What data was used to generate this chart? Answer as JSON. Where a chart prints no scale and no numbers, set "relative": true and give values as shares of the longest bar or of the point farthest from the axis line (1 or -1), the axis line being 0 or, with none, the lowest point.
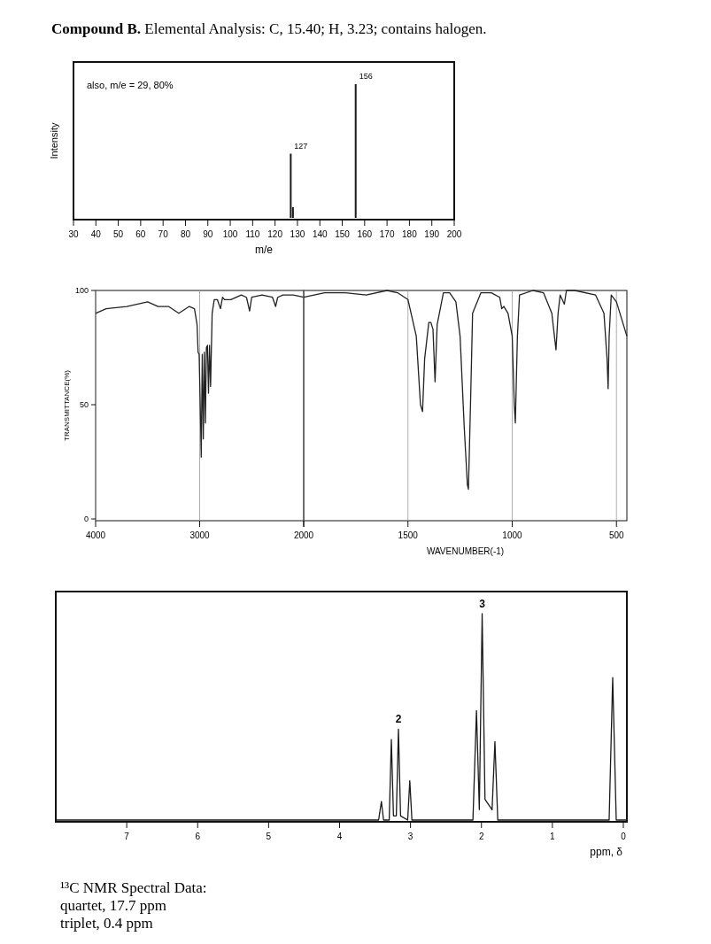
{
  "chart_data": [
    {
      "type": "bar",
      "title": "Compound B. Elemental Analysis: C, 15.40; H, 3.23; contains halogen.",
      "xlabel": "m/e",
      "ylabel": "Intensity",
      "relative": true,
      "color": "#1a1a1a",
      "x": [
        127,
        128,
        156
      ],
      "values": [
        0.48,
        0.08,
        1
      ],
      "xlim": [
        30,
        200
      ],
      "xticks": [
        30,
        40,
        50,
        60,
        70,
        80,
        90,
        100,
        110,
        120,
        130,
        140,
        150,
        160,
        170,
        180,
        190,
        200
      ],
      "tick_labels": "x",
      "annotations": [
        "also, m/e = 29, 80%",
        {
          "text": "127",
          "x": 127,
          "y": 0.48
        },
        {
          "text": "156",
          "x": 156,
          "y": 1
        }
      ]
    },
    {
      "type": "line",
      "ylabel": "TRANSMITTANCE(%)",
      "color": "#222222",
      "grid": "x",
      "marker": "none",
      "line_style": "solid",
      "x": [
        4000,
        3900,
        3700,
        3500,
        3400,
        3300,
        3200,
        3100,
        3050,
        3025,
        3015,
        3005,
        2990,
        2985,
        2975,
        2965,
        2955,
        2945,
        2935,
        2925,
        2915,
        2905,
        2895,
        2880,
        2860,
        2830,
        2800,
        2780,
        2760,
        2700,
        2600,
        2550,
        2520,
        2500,
        2400,
        2300,
        2270,
        2250,
        2200,
        2100,
        2000
      ],
      "values": [
        90,
        92,
        93,
        95,
        93,
        93,
        90,
        93,
        92,
        85,
        73,
        72,
        40,
        27,
        72,
        35,
        73,
        42,
        75,
        76,
        55,
        76,
        58,
        90,
        96,
        96,
        92,
        97,
        96,
        96,
        98,
        97,
        91,
        97,
        98,
        97,
        93,
        97,
        98,
        98,
        97
      ],
      "xlim": [
        4000,
        2000
      ],
      "xticks": [
        4000,
        3000,
        2000
      ],
      "ylim": [
        0,
        100
      ],
      "yticks": [
        0,
        50,
        100
      ]
    },
    {
      "type": "line",
      "xlabel": "WAVENUMBER(-1)",
      "color": "#222222",
      "grid": "x",
      "marker": "none",
      "line_style": "solid",
      "tick_labels": "x",
      "x": [
        2000,
        1900,
        1800,
        1700,
        1600,
        1550,
        1500,
        1460,
        1440,
        1430,
        1420,
        1400,
        1390,
        1380,
        1370,
        1360,
        1330,
        1300,
        1270,
        1250,
        1230,
        1215,
        1210,
        1200,
        1190,
        1150,
        1100,
        1060,
        1050,
        1040,
        1020,
        1000,
        990,
        985,
        975,
        965,
        900,
        850,
        810,
        790,
        780,
        770,
        760,
        750,
        740,
        700,
        600,
        560,
        545,
        540,
        535,
        525,
        500,
        450
      ],
      "values": [
        97,
        99,
        99,
        98,
        100,
        99,
        96,
        80,
        50,
        47,
        70,
        86,
        86,
        83,
        60,
        85,
        99,
        99,
        95,
        80,
        40,
        15,
        13,
        50,
        90,
        99,
        99,
        97,
        92,
        93,
        90,
        80,
        50,
        42,
        80,
        98,
        100,
        99,
        90,
        74,
        90,
        98,
        96,
        94,
        100,
        100,
        98,
        90,
        70,
        57,
        80,
        98,
        95,
        80
      ],
      "xlim": [
        2000,
        450
      ],
      "xticks": [
        {
          "value": 2000,
          "label": null
        },
        1500,
        1000,
        500
      ],
      "ylim": [
        0,
        100
      ]
    },
    {
      "type": "line",
      "xlabel": "ppm, δ",
      "relative": true,
      "color": "#1a1a1a",
      "marker": "none",
      "line_style": "solid",
      "tick_labels": "x",
      "x": [
        8,
        3.45,
        3.41,
        3.38,
        3.3,
        3.27,
        3.24,
        3.2,
        3.17,
        3.14,
        3.04,
        3.01,
        2.98,
        2.12,
        2.07,
        2.03,
        1.99,
        1.95,
        1.85,
        1.81,
        1.77,
        0.2,
        0.15,
        0.1,
        -0.05
      ],
      "values": [
        0,
        0,
        0.09,
        0,
        0,
        0.39,
        0.02,
        0.02,
        0.44,
        0.02,
        0,
        0.19,
        0,
        0,
        0.53,
        0.05,
        1,
        0.1,
        0.05,
        0.38,
        0,
        0,
        0.69,
        0,
        0
      ],
      "xlim": [
        8,
        -0.05
      ],
      "xticks": [
        7,
        6,
        5,
        4,
        3,
        2,
        1,
        0
      ],
      "annotations": [
        {
          "text": "2",
          "x": 3.17,
          "y": 0.44
        },
        {
          "text": "3",
          "x": 1.99,
          "y": 1
        },
        "¹³C NMR Spectral Data:",
        "quartet, 17.7 ppm",
        "triplet, 0.4 ppm"
      ]
    }
  ]
}
